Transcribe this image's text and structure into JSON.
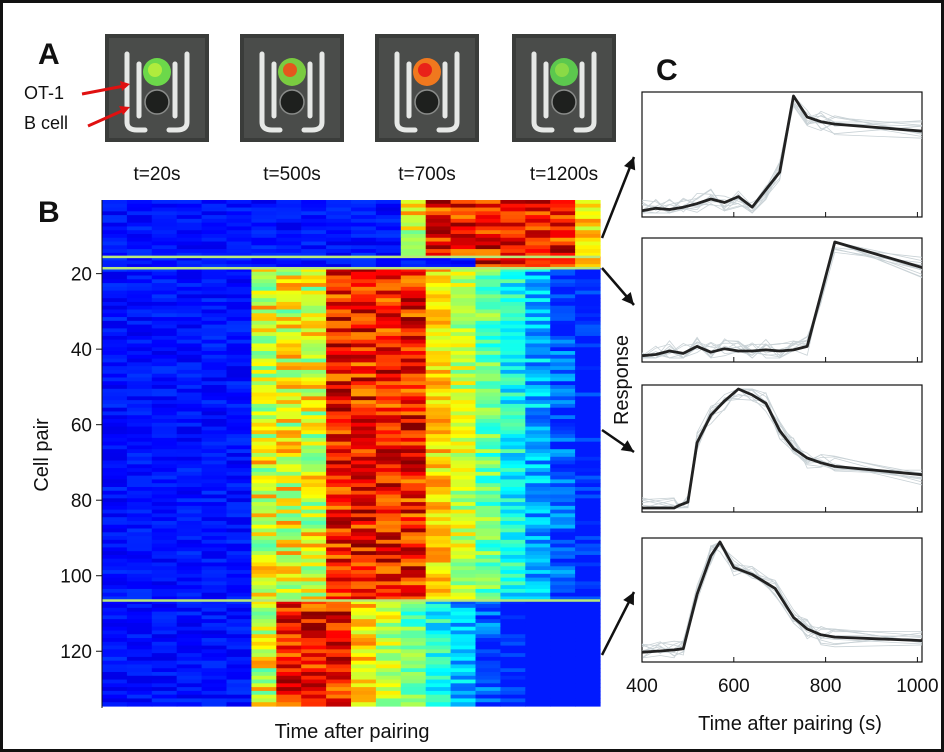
{
  "panels": {
    "a": "A",
    "b": "B",
    "c": "C"
  },
  "panel_a": {
    "frames": [
      {
        "time_label": "t=20s",
        "cell_color": "#6cd84a",
        "cell_core": "#b8ee3c"
      },
      {
        "time_label": "t=500s",
        "cell_color": "#7acb40",
        "cell_core": "#f04a1a"
      },
      {
        "time_label": "t=700s",
        "cell_color": "#f0781e",
        "cell_core": "#e81818"
      },
      {
        "time_label": "t=1200s",
        "cell_color": "#5cc84e",
        "cell_core": "#8fdc46"
      }
    ],
    "labels": {
      "ot1": "OT-1",
      "bcell": "B cell"
    },
    "arrow_color": "#e01010"
  },
  "chart_data": [
    {
      "type": "heatmap",
      "ylabel": "Cell pair",
      "xlabel": "Time after pairing",
      "yticks": [
        20,
        40,
        60,
        80,
        100,
        120
      ],
      "ylim": [
        1,
        135
      ],
      "n_rows": 134,
      "n_time_bins": 20,
      "colormap": "jet",
      "groups": [
        {
          "rows": [
            1,
            15
          ],
          "onset_bin": 12,
          "peak_bins": [
            13,
            18
          ]
        },
        {
          "rows": [
            16,
            18
          ],
          "onset_bin": 15,
          "peak_bins": [
            15,
            18
          ]
        },
        {
          "rows": [
            19,
            106
          ],
          "onset_bin": 6,
          "peak_bins": [
            9,
            12
          ]
        },
        {
          "rows": [
            107,
            134
          ],
          "onset_bin": 6,
          "peak_bins": [
            7,
            9
          ]
        }
      ]
    },
    {
      "type": "line",
      "ylabel": "Response",
      "xlabel": "Time after pairing (s)",
      "xlim": [
        400,
        1010
      ],
      "xticks": [
        400,
        600,
        800,
        1000
      ],
      "mean_color": "#222222",
      "trace_color": "#c9d2d6",
      "panels": [
        {
          "mean": {
            "x": [
              400,
              430,
              460,
              490,
              520,
              550,
              580,
              610,
              640,
              670,
              700,
              730,
              760,
              790,
              820,
              1010
            ],
            "y": [
              0.02,
              0.04,
              0.03,
              0.05,
              0.08,
              0.12,
              0.09,
              0.14,
              0.05,
              0.2,
              0.35,
              1.0,
              0.82,
              0.78,
              0.76,
              0.7
            ]
          }
        },
        {
          "mean": {
            "x": [
              400,
              430,
              460,
              490,
              520,
              550,
              580,
              610,
              640,
              670,
              700,
              730,
              760,
              790,
              820,
              1010
            ],
            "y": [
              0.02,
              0.03,
              0.06,
              0.04,
              0.1,
              0.05,
              0.08,
              0.06,
              0.06,
              0.07,
              0.06,
              0.07,
              0.1,
              0.55,
              1.0,
              0.78
            ]
          }
        },
        {
          "mean": {
            "x": [
              400,
              470,
              480,
              500,
              520,
              550,
              580,
              610,
              640,
              670,
              700,
              730,
              760,
              790,
              820,
              1010
            ],
            "y": [
              0.0,
              0.0,
              0.02,
              0.05,
              0.55,
              0.78,
              0.9,
              1.0,
              0.95,
              0.88,
              0.65,
              0.5,
              0.42,
              0.38,
              0.35,
              0.28
            ]
          }
        },
        {
          "mean": {
            "x": [
              400,
              440,
              470,
              490,
              520,
              550,
              570,
              600,
              640,
              690,
              730,
              760,
              790,
              820,
              1010
            ],
            "y": [
              0.05,
              0.06,
              0.07,
              0.08,
              0.55,
              0.88,
              1.0,
              0.78,
              0.72,
              0.6,
              0.35,
              0.25,
              0.2,
              0.18,
              0.15
            ]
          }
        }
      ]
    }
  ]
}
